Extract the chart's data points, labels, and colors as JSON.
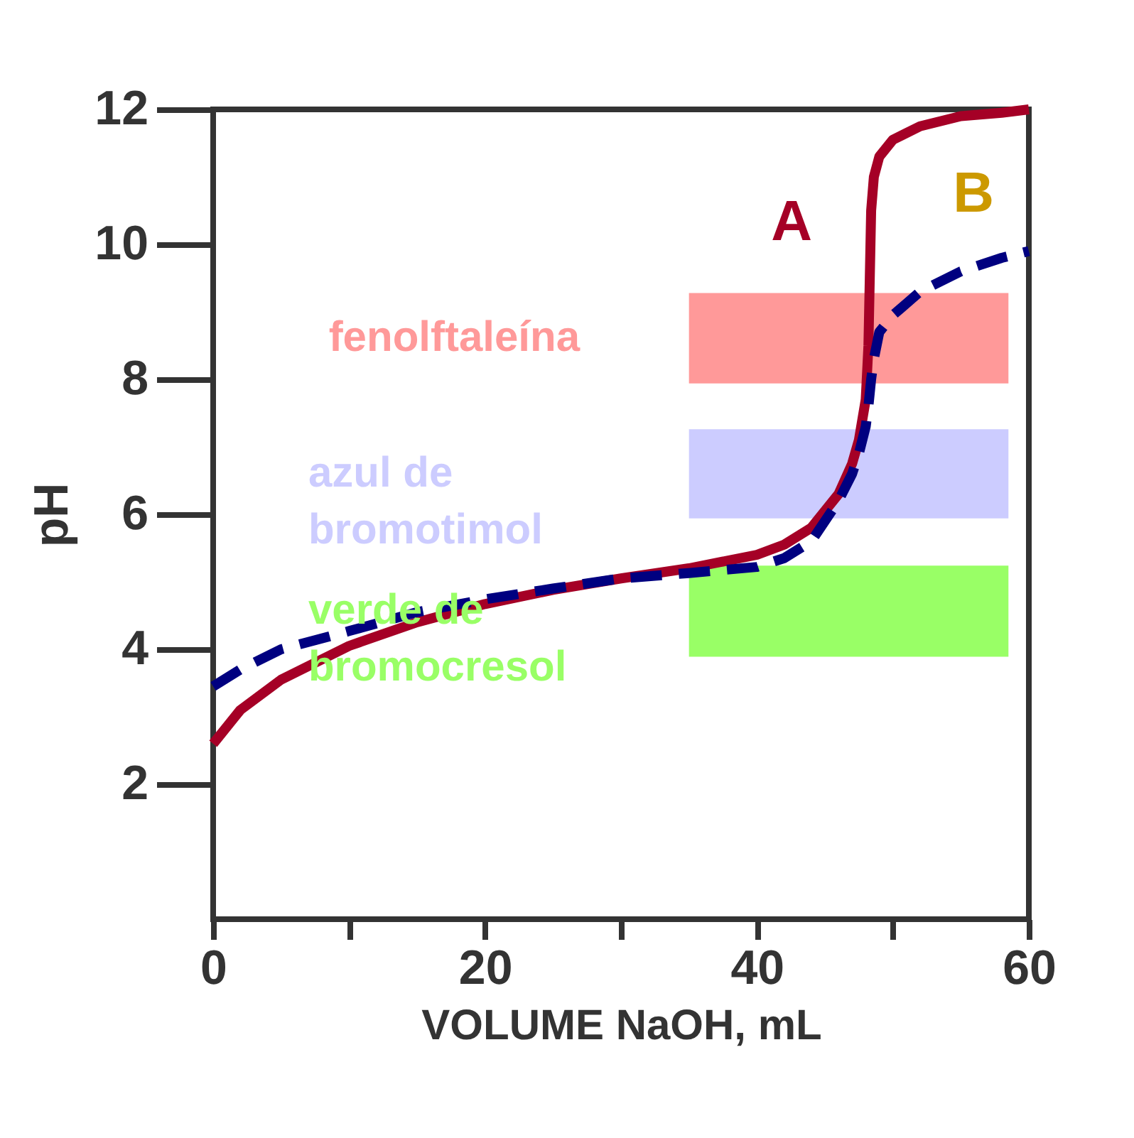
{
  "chart_data": {
    "type": "line",
    "xlabel": "VOLUME NaOH, mL",
    "ylabel": "pH",
    "x": [
      0,
      2,
      5,
      10,
      15,
      20,
      25,
      30,
      35,
      40,
      42,
      44,
      46,
      47,
      47.5,
      48,
      48.2,
      48.3,
      48.4,
      48.6,
      49,
      50,
      52,
      55,
      58,
      60
    ],
    "series": [
      {
        "name": "A",
        "color": "#a50026",
        "line_style": "solid",
        "values": [
          2.6,
          3.1,
          3.55,
          4.05,
          4.4,
          4.67,
          4.88,
          5.05,
          5.2,
          5.4,
          5.55,
          5.8,
          6.3,
          6.75,
          7.1,
          7.7,
          8.5,
          9.5,
          10.5,
          11.0,
          11.3,
          11.55,
          11.75,
          11.9,
          11.95,
          12.0
        ]
      },
      {
        "name": "B",
        "color": "#000080",
        "line_style": "dashed",
        "values": [
          3.45,
          3.7,
          4.0,
          4.27,
          4.55,
          4.74,
          4.9,
          5.05,
          5.13,
          5.22,
          5.35,
          5.6,
          6.2,
          6.6,
          6.9,
          7.3,
          7.6,
          7.8,
          8.0,
          8.3,
          8.7,
          8.95,
          9.3,
          9.6,
          9.8,
          9.9
        ]
      }
    ],
    "bands": [
      {
        "axis": "y",
        "from": 7.94,
        "to": 9.28,
        "label": "fenolftaleína",
        "color": "#ff9999"
      },
      {
        "axis": "y",
        "from": 5.94,
        "to": 7.26,
        "label": "azul de bromotimol",
        "color": "#ccccff"
      },
      {
        "axis": "y",
        "from": 3.89,
        "to": 5.24,
        "label": "verde de bromocresol",
        "color": "#99ff66"
      }
    ],
    "xlim": [
      0,
      60
    ],
    "xticks": [
      0,
      {
        "value": 10,
        "label": null
      },
      20,
      {
        "value": 30,
        "label": null
      },
      40,
      {
        "value": 50,
        "label": null
      },
      60
    ],
    "ylim": [
      0,
      12
    ],
    "yticks": [
      2,
      4,
      6,
      8,
      10,
      12
    ],
    "grid": false
  }
}
